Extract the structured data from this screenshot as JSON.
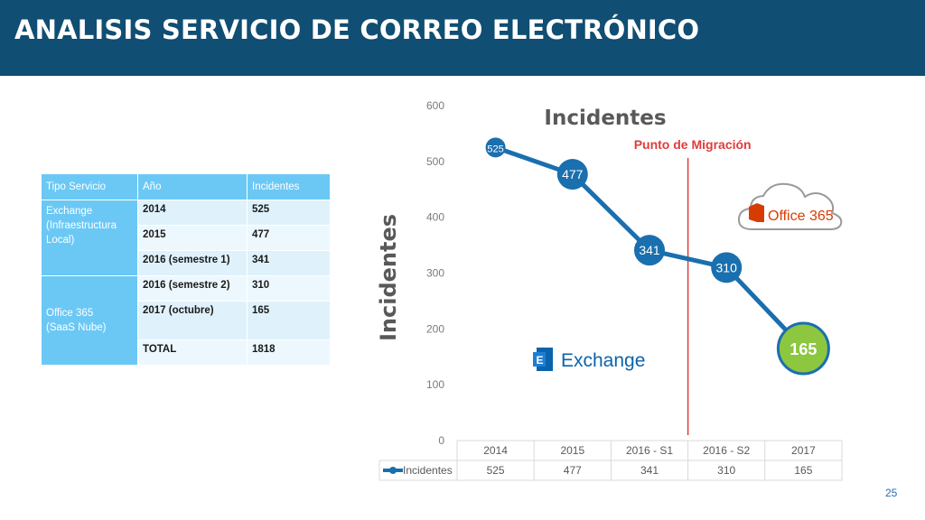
{
  "header": {
    "title": "ANALISIS SERVICIO DE CORREO ELECTRÓNICO"
  },
  "table": {
    "headers": [
      "Tipo Servicio",
      "Año",
      "Incidentes"
    ],
    "groups": [
      {
        "label_lines": [
          "Exchange",
          "(Infraestructura",
          "Local)"
        ]
      },
      {
        "label_lines": [
          "Office 365",
          "(SaaS Nube)"
        ]
      }
    ],
    "rows": [
      {
        "year": "2014",
        "value": "525"
      },
      {
        "year": "2015",
        "value": "477"
      },
      {
        "year": "2016 (semestre 1)",
        "value": "341"
      },
      {
        "year": "2016 (semestre 2)",
        "value": "310"
      },
      {
        "year": "2017 (octubre)",
        "value": "165"
      },
      {
        "year": "TOTAL",
        "value": "1818"
      }
    ]
  },
  "chart_data": {
    "type": "line",
    "title": "Incidentes",
    "ylabel": "Incidentes",
    "xlabel": "",
    "categories": [
      "2014",
      "2015",
      "2016 - S1",
      "2016 - S2",
      "2017"
    ],
    "series": [
      {
        "name": "Incidentes",
        "values": [
          525,
          477,
          341,
          310,
          165
        ]
      }
    ],
    "ylim": [
      0,
      600
    ],
    "yticks": [
      "0",
      "100",
      "200",
      "300",
      "400",
      "500",
      "600"
    ],
    "data_labels": [
      "525",
      "477",
      "341",
      "310",
      "165"
    ],
    "annotation": "Punto de Migración",
    "line_color": "#1a6fae",
    "highlight_color": "#8dc63f",
    "marker_line_color": "#e03b3b",
    "legend": "data-table-below"
  },
  "logos": {
    "exchange": {
      "text": "Exchange",
      "letter": "E",
      "color": "#0a64ad"
    },
    "office": {
      "text": "Office 365",
      "color": "#d83b01"
    }
  },
  "slide_number": "25"
}
